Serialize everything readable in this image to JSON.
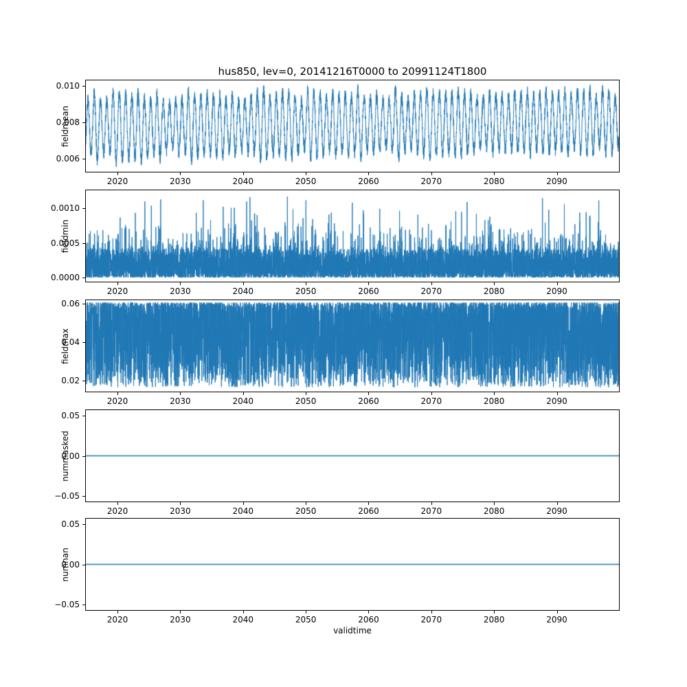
{
  "figure": {
    "title": "hus850, lev=0, 20141216T0000 to 20991124T1800",
    "line_color": "#1f77b4",
    "background": "#ffffff"
  },
  "x_axis": {
    "label": "validtime",
    "lim": [
      2014.96,
      2099.9
    ],
    "ticks": [
      2020,
      2030,
      2040,
      2050,
      2060,
      2070,
      2080,
      2090
    ],
    "tick_labels": [
      "2020",
      "2030",
      "2040",
      "2050",
      "2060",
      "2070",
      "2080",
      "2090"
    ]
  },
  "chart_data": [
    {
      "id": "fieldmean",
      "type": "line",
      "ylabel": "fieldmean",
      "ylim": [
        0.00528,
        0.01032
      ],
      "yticks": [
        0.006,
        0.008,
        0.01
      ],
      "ytick_labels": [
        "0.006",
        "0.008",
        "0.010"
      ],
      "series": {
        "kind": "seasonal_noise",
        "description": "dense annual oscillation of field mean specific humidity",
        "points": 5500,
        "base": 0.00775,
        "trend": 0.0003,
        "seasonal_amp": 0.00155,
        "noise_amp": 0.00035,
        "range": [
          0.00545,
          0.0101
        ],
        "line_width": 1
      }
    },
    {
      "id": "fieldmin",
      "type": "line",
      "ylabel": "fieldmin",
      "ylim": [
        -6e-05,
        0.00126
      ],
      "yticks": [
        0.0,
        0.0005,
        0.001
      ],
      "ytick_labels": [
        "0.0000",
        "0.0005",
        "0.0010"
      ],
      "series": {
        "kind": "spiky",
        "description": "field minimum, dense mass near zero with upward spikes",
        "points": 7000,
        "range": [
          0,
          0.00123
        ],
        "base_scale": 0.00042,
        "base_exp": 1.8,
        "mid_spike_prob": 0.25,
        "mid_spike_scale": 0.00045,
        "tall_spike_prob": 0.01,
        "tall_spike_base": 0.0007,
        "tall_spike_scale": 0.00048,
        "line_width": 1
      }
    },
    {
      "id": "fieldmax",
      "type": "line",
      "ylabel": "fieldmax",
      "ylim": [
        0.0143,
        0.0617
      ],
      "yticks": [
        0.02,
        0.04,
        0.06
      ],
      "ytick_labels": [
        "0.02",
        "0.04",
        "0.06"
      ],
      "series": {
        "kind": "noisy_band",
        "description": "field maximum, solid noisy band between ~0.016 and ~0.06 with occasional dips from top",
        "points": 7000,
        "range": [
          0.0165,
          0.0605
        ],
        "skew": 1.7,
        "dip_prob": 0.0012,
        "dip_cap": [
          0.043,
          0.052
        ],
        "dip_len": [
          6,
          20
        ],
        "line_width": 1
      }
    },
    {
      "id": "nummasked",
      "type": "line",
      "ylabel": "nummasked",
      "ylim": [
        -0.057,
        0.057
      ],
      "yticks": [
        -0.05,
        0.0,
        0.05
      ],
      "ytick_labels": [
        "−0.05",
        "0.00",
        "0.05"
      ],
      "series": {
        "kind": "constant",
        "description": "number of masked points, constant zero",
        "points": 400,
        "value": 0,
        "line_width": 1.6
      }
    },
    {
      "id": "numnan",
      "type": "line",
      "ylabel": "numnan",
      "ylim": [
        -0.057,
        0.057
      ],
      "yticks": [
        -0.05,
        0.0,
        0.05
      ],
      "ytick_labels": [
        "−0.05",
        "0.00",
        "0.05"
      ],
      "series": {
        "kind": "constant",
        "description": "number of NaN points, constant zero",
        "points": 400,
        "value": 0,
        "line_width": 1.6
      }
    }
  ]
}
